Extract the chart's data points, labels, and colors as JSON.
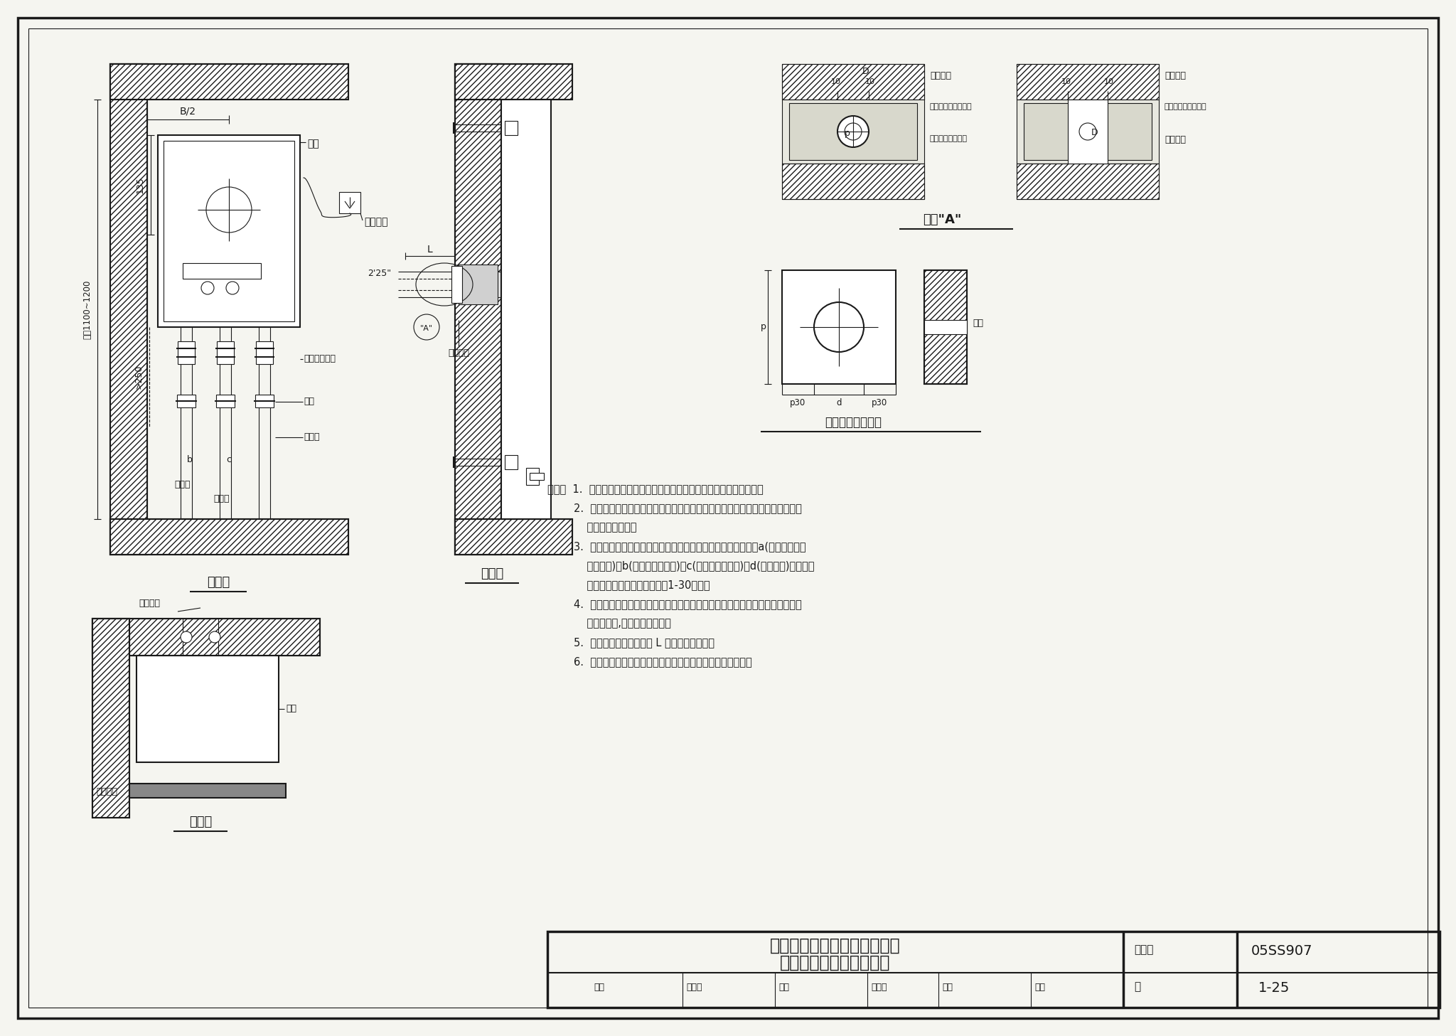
{
  "bg_color": "#ffffff",
  "paper_bg": "#f5f5f0",
  "line_color": "#1a1a1a",
  "title_main": "强制给排气式（后出二层管）",
  "title_sub": "燃气快速热水器安装详图",
  "atlas_no_label": "图集号",
  "atlas_no_value": "05SS907",
  "page_label": "页",
  "page_value": "1-25",
  "review_label": "审核",
  "review_name": "林建平",
  "check_label": "校对",
  "check_name": "何少平",
  "design_label": "设计",
  "design_name": "赵鑫",
  "label_立面图": "立面图",
  "label_侧面图": "侧面图",
  "label_平面图": "平面图",
  "label_节点A": "节点\"A\"",
  "label_预制带洞混凝土块": "预制带洞混凝土块",
  "label_本体": "本体",
  "label_接地插座": "接地插座",
  "label_活接头或软管": "活接头或软管",
  "label_球阀": "球阀",
  "label_冷水管": "冷水管",
  "label_燃气管": "燃气管",
  "label_热水管": "热水管",
  "label_B2": "B/2",
  "label_135": "135",
  "label_250": ">250",
  "label_高度": "距地1100~1200",
  "label_给排气筒": "给排气筒",
  "label_安装螺钉": "安装螺钉",
  "label_砂浆不燃1": "砂浆等不燃材料填充",
  "label_预制带洞1": "预制带洞混凝土块",
  "label_砂浆不燃2": "砂浆等不燃材料填充",
  "label_预埋钢管": "预埋钢管",
  "label_给排气筒3": "给排气筒",
  "label_A标记": "\"A\"",
  "label_L": "L",
  "label_225": "2'25\"",
  "label_墙厚": "墙厚",
  "note_lines": [
    "说明：  1.  冷热水管道可采用明装或暗装布置，具体方式由设计人员选定。",
    "        2.  给排气筒穿墙部分可采用设预制带洞混凝土块或预埋钢管留洞方式，间隙密封",
    "            处宜作防水处理。",
    "        3.  燃气管分左、中、右三种位置，热水管在冷水管左侧。管径及a(排气筒中心线",
    "            高墙距离)、b(左管与中管间距)、c(右管与中管间距)和d(留洞直径)的数值应",
    "            根据选用的产品确定。详见第1-30页表。",
    "        4.  对应产品确定膨胀螺钉的开孔尺寸、数量及位置，钻孔装入膨胀管并拧入木螺",
    "            钉至持力层,固定热水器本体。",
    "        5.  给排气筒出墙最小尺寸 L 由所选产品确定。",
    "        6.  给排气筒、弯头、风帽及安装螺钉由安装及生产企业提供。"
  ]
}
